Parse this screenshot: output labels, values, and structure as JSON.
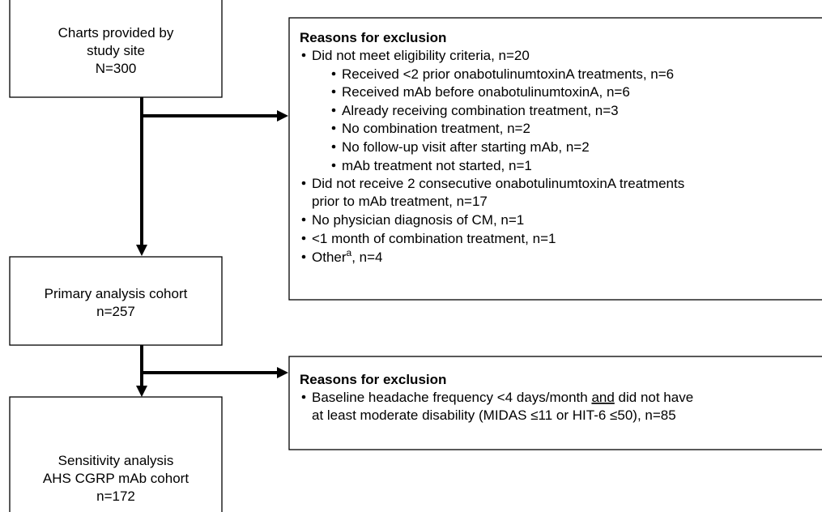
{
  "flow": {
    "boxes": [
      {
        "lines": [
          "Charts provided by",
          "study site",
          "N=300"
        ]
      },
      {
        "lines": [
          "Primary analysis cohort",
          "n=257"
        ]
      },
      {
        "lines": [
          "Sensitivity analysis",
          "AHS CGRP mAb cohort",
          "n=172"
        ]
      }
    ],
    "exclusions": [
      {
        "title": "Reasons for exclusion",
        "items": [
          {
            "lines": [
              "Did not meet eligibility criteria, n=20"
            ],
            "subitems": [
              "Received <2 prior onabotulinumtoxinA treatments, n=6",
              "Received mAb before onabotulinumtoxinA, n=6",
              "Already receiving combination treatment, n=3",
              "No combination treatment, n=2",
              "No follow-up visit after starting mAb, n=2",
              "mAb treatment not started, n=1"
            ]
          },
          {
            "lines": [
              "Did not receive 2 consecutive onabotulinumtoxinA treatments",
              "prior to mAb treatment, n=17"
            ]
          },
          {
            "lines": [
              "No physician diagnosis of CM, n=1"
            ]
          },
          {
            "lines": [
              "<1 month of combination treatment, n=1"
            ]
          },
          {
            "parts": [
              "Other",
              "a",
              ", n=4"
            ]
          }
        ]
      },
      {
        "title": "Reasons for exclusion",
        "items": [
          {
            "parts": [
              "Baseline headache frequency <4 days/month ",
              "and",
              " did not have"
            ],
            "lines": [
              "at least moderate disability (MIDAS ≤11 or HIT-6 ≤50), n=85"
            ]
          }
        ]
      }
    ]
  }
}
